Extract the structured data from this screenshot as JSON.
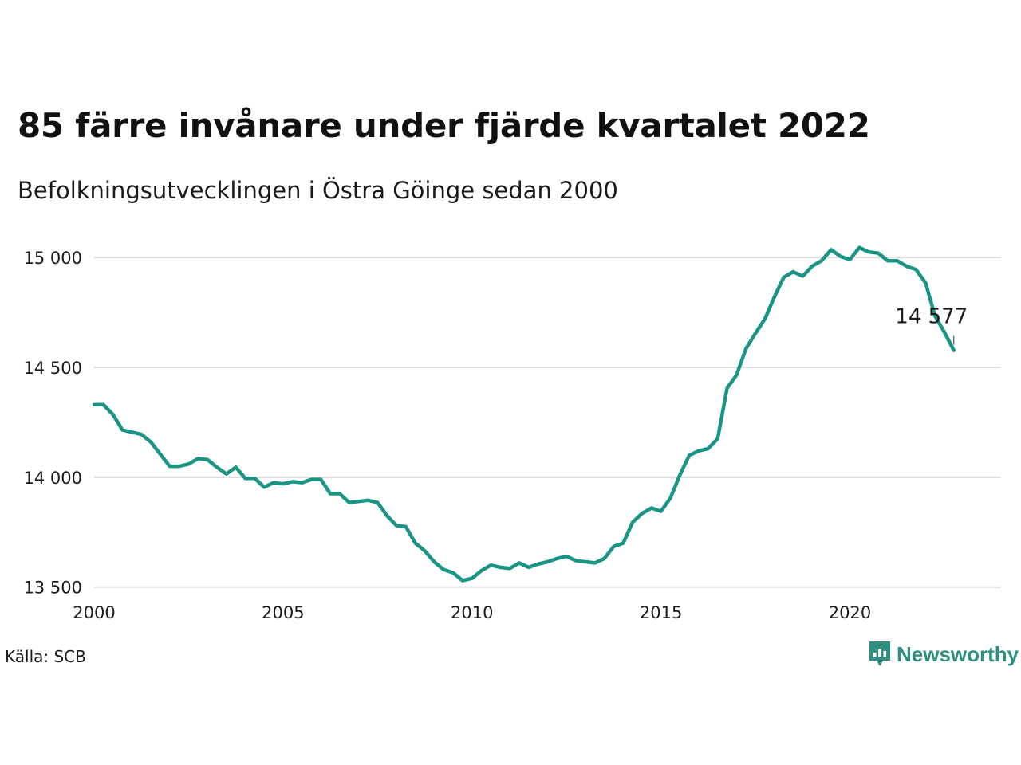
{
  "header": {
    "title": "85 färre invånare under fjärde kvartalet 2022",
    "subtitle": "Befolkningsutvecklingen i Östra Göinge sedan 2000"
  },
  "footer": {
    "source": "Källa: SCB",
    "brand": "Newsworthy",
    "brand_icon": "newsworthy-logo-icon"
  },
  "colors": {
    "line": "#1a9484",
    "grid": "#dddddd",
    "text": "#1a1a1a",
    "brand": "#2f8f80"
  },
  "chart_data": {
    "type": "line",
    "title": "85 färre invånare under fjärde kvartalet 2022",
    "subtitle": "Befolkningsutvecklingen i Östra Göinge sedan 2000",
    "xlabel": "",
    "ylabel": "",
    "xlim": [
      2000,
      2024
    ],
    "ylim": [
      13470,
      15120
    ],
    "grid": "horizontal",
    "legend": "none",
    "y_ticks": [
      {
        "value": 13500,
        "label": "13 500"
      },
      {
        "value": 14000,
        "label": "14 000"
      },
      {
        "value": 14500,
        "label": "14 500"
      },
      {
        "value": 15000,
        "label": "15 000"
      }
    ],
    "x_ticks": [
      {
        "value": 2000,
        "label": "2000"
      },
      {
        "value": 2005,
        "label": "2005"
      },
      {
        "value": 2010,
        "label": "2010"
      },
      {
        "value": 2015,
        "label": "2015"
      },
      {
        "value": 2020,
        "label": "2020"
      }
    ],
    "annotation": {
      "x": 2022.75,
      "y": 14577,
      "label": "14 577"
    },
    "series": [
      {
        "x": [
          2000.0,
          2000.25,
          2000.5,
          2000.75,
          2001.0,
          2001.25,
          2001.5,
          2001.75,
          2002.0,
          2002.25,
          2002.5,
          2002.75,
          2003.0,
          2003.25,
          2003.5,
          2003.75,
          2004.0,
          2004.25,
          2004.5,
          2004.75,
          2005.0,
          2005.25,
          2005.5,
          2005.75,
          2006.0,
          2006.25,
          2006.5,
          2006.75,
          2007.0,
          2007.25,
          2007.5,
          2007.75,
          2008.0,
          2008.25,
          2008.5,
          2008.75,
          2009.0,
          2009.25,
          2009.5,
          2009.75,
          2010.0,
          2010.25,
          2010.5,
          2010.75,
          2011.0,
          2011.25,
          2011.5,
          2011.75,
          2012.0,
          2012.25,
          2012.5,
          2012.75,
          2013.0,
          2013.25,
          2013.5,
          2013.75,
          2014.0,
          2014.25,
          2014.5,
          2014.75,
          2015.0,
          2015.25,
          2015.5,
          2015.75,
          2016.0,
          2016.25,
          2016.5,
          2016.75,
          2017.0,
          2017.25,
          2017.5,
          2017.75,
          2018.0,
          2018.25,
          2018.5,
          2018.75,
          2019.0,
          2019.25,
          2019.5,
          2019.75,
          2020.0,
          2020.25,
          2020.5,
          2020.75,
          2021.0,
          2021.25,
          2021.5,
          2021.75,
          2022.0,
          2022.25,
          2022.5,
          2022.75
        ],
        "values": [
          14330,
          14330,
          14285,
          14215,
          14205,
          14195,
          14160,
          14105,
          14050,
          14050,
          14060,
          14085,
          14080,
          14045,
          14015,
          14045,
          13995,
          13995,
          13955,
          13975,
          13970,
          13980,
          13975,
          13990,
          13990,
          13925,
          13925,
          13885,
          13890,
          13895,
          13885,
          13825,
          13780,
          13775,
          13700,
          13665,
          13615,
          13580,
          13565,
          13530,
          13540,
          13575,
          13600,
          13590,
          13585,
          13610,
          13590,
          13605,
          13615,
          13630,
          13640,
          13620,
          13615,
          13610,
          13630,
          13685,
          13700,
          13795,
          13835,
          13860,
          13845,
          13905,
          14010,
          14100,
          14120,
          14130,
          14175,
          14405,
          14465,
          14585,
          14655,
          14720,
          14820,
          14910,
          14935,
          14915,
          14960,
          14985,
          15035,
          15005,
          14990,
          15045,
          15025,
          15020,
          14985,
          14985,
          14960,
          14945,
          14885,
          14735,
          14660,
          14577
        ]
      }
    ]
  }
}
